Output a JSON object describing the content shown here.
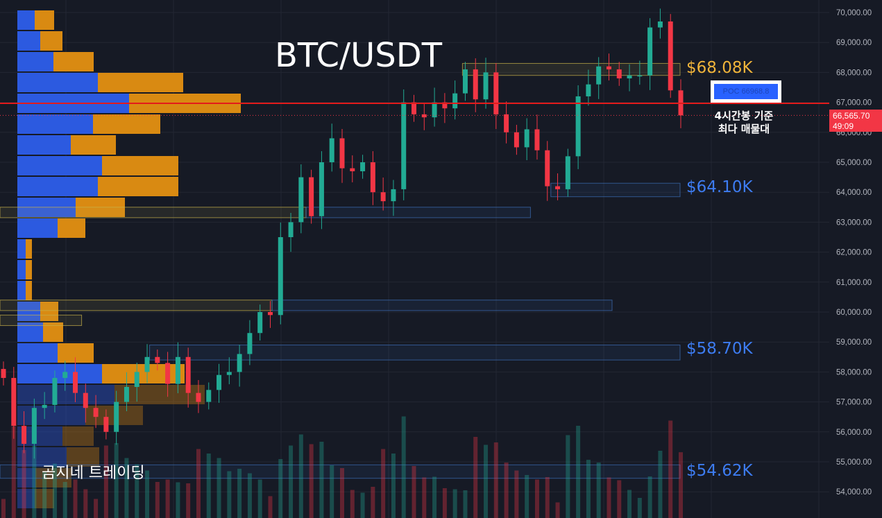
{
  "title": "BTC/USDT",
  "watermark": "곰지네 트레이딩",
  "poc_label": "POC  66968.8",
  "note": [
    "4시간봉 기준",
    "최다 매물대"
  ],
  "price_tag": {
    "price": "66,565.70",
    "countdown": "49:09"
  },
  "levels": [
    {
      "label": "$68.08K",
      "price": 68080,
      "color": "#f0b43a"
    },
    {
      "label": "$64.10K",
      "price": 64100,
      "color": "#3d7cf2"
    },
    {
      "label": "$58.70K",
      "price": 58700,
      "color": "#3d7cf2"
    },
    {
      "label": "$54.62K",
      "price": 54620,
      "color": "#3d7cf2"
    }
  ],
  "colors": {
    "up": "#22ab94",
    "down": "#f23645",
    "buy_profile": "#2c5ae0",
    "sell_profile": "#d98a12",
    "poc_line": "#e31b1b",
    "background": "#161a25"
  },
  "chart_data": {
    "type": "candlestick",
    "title": "BTC/USDT",
    "ylim": [
      53700,
      70300
    ],
    "y_ticks": [
      "70,000.00",
      "69,000.00",
      "68,000.00",
      "67,000.00",
      "66,000.00",
      "65,000.00",
      "64,000.00",
      "63,000.00",
      "62,000.00",
      "61,000.00",
      "60,000.00",
      "59,000.00",
      "58,000.00",
      "57,000.00",
      "56,000.00",
      "55,000.00",
      "54,000.00"
    ],
    "y_tick_values": [
      70000,
      69000,
      68000,
      67000,
      66000,
      65000,
      64000,
      63000,
      62000,
      61000,
      60000,
      59000,
      58000,
      57000,
      56000,
      55000,
      54000
    ],
    "poc_price": 66968.8,
    "last_price": 66565.7,
    "close": [
      57800,
      56200,
      55600,
      56800,
      56900,
      57800,
      58000,
      57300,
      56800,
      56500,
      56000,
      57000,
      57500,
      58000,
      58500,
      58300,
      57600,
      58500,
      57300,
      57000,
      57400,
      57900,
      58000,
      58600,
      59300,
      60000,
      59900,
      62500,
      63000,
      64500,
      63200,
      65000,
      65800,
      64800,
      64700,
      65000,
      64000,
      63700,
      64100,
      67000,
      66600,
      66500,
      67000,
      66800,
      67300,
      68100,
      67100,
      68000,
      66600,
      66000,
      65500,
      66100,
      65400,
      64200,
      64100,
      65200,
      67200,
      67600,
      68200,
      68100,
      67800,
      67900,
      67900,
      69500,
      69700,
      67400,
      66566
    ],
    "zones": [
      {
        "top": 68300,
        "bottom": 67900,
        "from": 0.68,
        "to": 1.0,
        "kind": "resistance"
      },
      {
        "top": 64300,
        "bottom": 63850,
        "from": 0.81,
        "to": 1.0,
        "kind": "support"
      },
      {
        "top": 63500,
        "bottom": 63150,
        "from": 0.0,
        "to": 0.45,
        "kind": "resistance"
      },
      {
        "top": 63500,
        "bottom": 63150,
        "from": 0.45,
        "to": 0.78,
        "kind": "support"
      },
      {
        "top": 60400,
        "bottom": 60050,
        "from": 0.0,
        "to": 0.4,
        "kind": "resistance"
      },
      {
        "top": 60400,
        "bottom": 60050,
        "from": 0.4,
        "to": 0.9,
        "kind": "support"
      },
      {
        "top": 59900,
        "bottom": 59550,
        "from": 0.0,
        "to": 0.12,
        "kind": "resistance"
      },
      {
        "top": 58900,
        "bottom": 58400,
        "from": 0.22,
        "to": 1.0,
        "kind": "support"
      },
      {
        "top": 54900,
        "bottom": 54450,
        "from": 0.0,
        "to": 1.0,
        "kind": "support"
      }
    ],
    "volume_profile": {
      "buy": [
        25,
        33,
        52,
        116,
        161,
        109,
        77,
        122,
        116,
        84,
        58,
        12,
        12,
        12,
        33,
        37,
        58,
        122,
        140,
        98,
        65,
        71,
        26,
        25
      ],
      "sell": [
        28,
        32,
        58,
        123,
        161,
        97,
        65,
        110,
        116,
        71,
        40,
        9,
        9,
        9,
        26,
        29,
        52,
        119,
        130,
        83,
        45,
        47,
        52,
        28
      ]
    }
  }
}
